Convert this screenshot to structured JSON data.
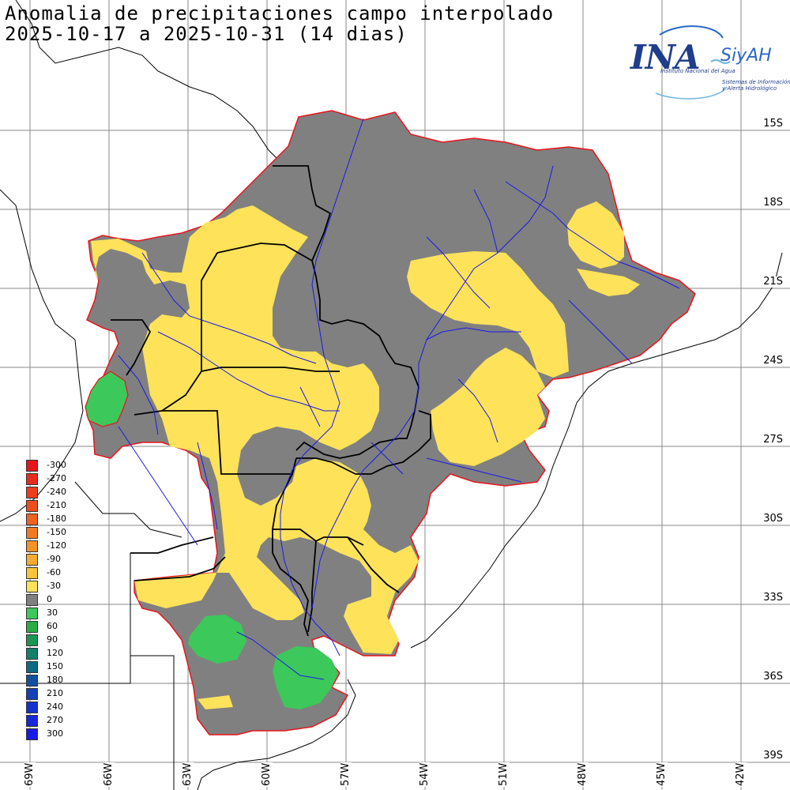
{
  "title_line1": "Anomalia de precipitaciones campo interpolado",
  "title_line2": "2025-10-17 a 2025-10-31 (14 dias)",
  "logo": {
    "main": "INA",
    "secondary": "SiyAH",
    "subtitle1": "Instituto Nacional del Agua",
    "subtitle2a": "Sistemas de Información",
    "subtitle2b": "y Alerta Hidrológico"
  },
  "lat_labels": [
    "15S",
    "18S",
    "21S",
    "24S",
    "27S",
    "30S",
    "33S",
    "36S",
    "39S"
  ],
  "lon_labels": [
    "69W",
    "66W",
    "63W",
    "60W",
    "57W",
    "54W",
    "51W",
    "48W",
    "45W",
    "42W"
  ],
  "legend": [
    {
      "label": "-300",
      "color": "#e8141c"
    },
    {
      "label": "-270",
      "color": "#ea2a1c"
    },
    {
      "label": "-240",
      "color": "#ec3c1c"
    },
    {
      "label": "-210",
      "color": "#ee4e1c"
    },
    {
      "label": "-180",
      "color": "#f0621e"
    },
    {
      "label": "-150",
      "color": "#f27a22"
    },
    {
      "label": "-120",
      "color": "#f59228"
    },
    {
      "label": "-90",
      "color": "#f7aa30"
    },
    {
      "label": "-60",
      "color": "#fac43a"
    },
    {
      "label": "-30",
      "color": "#fde25a"
    },
    {
      "label": "0",
      "color": "#808080"
    },
    {
      "label": "30",
      "color": "#3cc85a"
    },
    {
      "label": "60",
      "color": "#28ad46"
    },
    {
      "label": "90",
      "color": "#1a9654"
    },
    {
      "label": "120",
      "color": "#12806a"
    },
    {
      "label": "150",
      "color": "#0e6a80"
    },
    {
      "label": "180",
      "color": "#1250a0"
    },
    {
      "label": "210",
      "color": "#1440b8"
    },
    {
      "label": "240",
      "color": "#1632cc"
    },
    {
      "label": "270",
      "color": "#1826dc"
    },
    {
      "label": "300",
      "color": "#1a1ae8"
    }
  ],
  "colors": {
    "negative_anomaly": "#fde25a",
    "normal": "#808080",
    "positive_anomaly": "#3cc85a",
    "basin_outline": "#e8141c",
    "rivers": "#1a1ae8",
    "borders": "#000000",
    "graticule": "#8a8a8a"
  }
}
